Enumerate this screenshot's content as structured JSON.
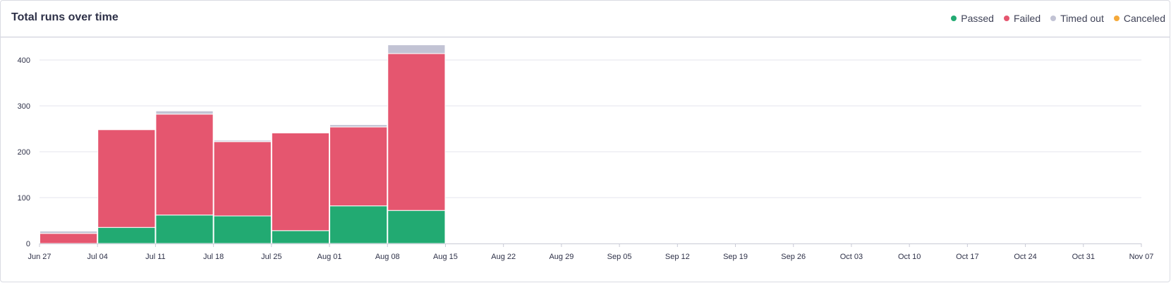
{
  "header": {
    "title": "Total runs over time"
  },
  "chart_data": {
    "type": "bar",
    "stacked": true,
    "title": "Total runs over time",
    "xlabel": "",
    "ylabel": "",
    "ylim": [
      0,
      440
    ],
    "yticks": [
      0,
      100,
      200,
      300,
      400
    ],
    "grid": true,
    "legend_position": "top-right",
    "x_ticks": [
      "Jun 27",
      "Jul 04",
      "Jul 11",
      "Jul 18",
      "Jul 25",
      "Aug 01",
      "Aug 08",
      "Aug 15",
      "Aug 22",
      "Aug 29",
      "Sep 05",
      "Sep 12",
      "Sep 19",
      "Sep 26",
      "Oct 03",
      "Oct 10",
      "Oct 17",
      "Oct 24",
      "Oct 31",
      "Nov 07"
    ],
    "categories": [
      "Jun 27",
      "Jul 04",
      "Jul 11",
      "Jul 18",
      "Jul 25",
      "Aug 01",
      "Aug 08"
    ],
    "series": [
      {
        "name": "Passed",
        "color": "#22aa72",
        "values": [
          0,
          35,
          62,
          60,
          28,
          82,
          72
        ]
      },
      {
        "name": "Failed",
        "color": "#e5566f",
        "values": [
          22,
          213,
          220,
          162,
          213,
          172,
          342
        ]
      },
      {
        "name": "Timed out",
        "color": "#c2c3d4",
        "values": [
          5,
          0,
          7,
          3,
          0,
          5,
          19
        ]
      },
      {
        "name": "Canceled",
        "color": "#f5a93a",
        "values": [
          0,
          0,
          0,
          0,
          0,
          0,
          0
        ]
      }
    ]
  }
}
